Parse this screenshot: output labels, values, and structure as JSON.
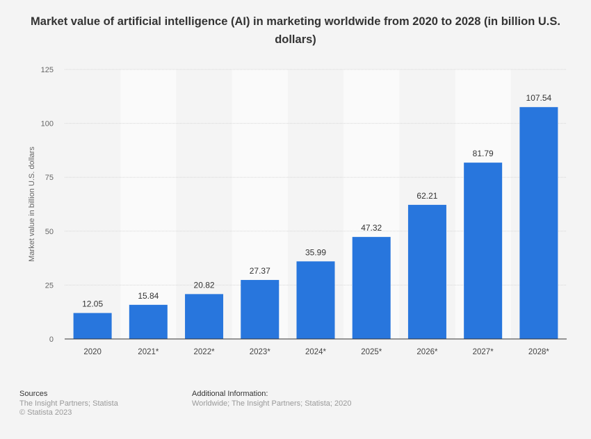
{
  "chart_data": {
    "type": "bar",
    "title": "Market value of artificial intelligence (AI) in marketing worldwide from 2020 to 2028 (in billion U.S. dollars)",
    "xlabel": "",
    "ylabel": "Market value in billion U.S. dollars",
    "categories": [
      "2020",
      "2021*",
      "2022*",
      "2023*",
      "2024*",
      "2025*",
      "2026*",
      "2027*",
      "2028*"
    ],
    "values": [
      12.05,
      15.84,
      20.82,
      27.37,
      35.99,
      47.32,
      62.21,
      81.79,
      107.54
    ],
    "data_labels": [
      "12.05",
      "15.84",
      "20.82",
      "27.37",
      "35.99",
      "47.32",
      "62.21",
      "81.79",
      "107.54"
    ],
    "ylim": [
      0,
      125
    ],
    "yticks": [
      "0",
      "25",
      "50",
      "75",
      "100",
      "125"
    ],
    "grid": true,
    "bar_color": "#2876dd"
  },
  "footer": {
    "sources_label": "Sources",
    "sources_text": "The Insight Partners; Statista",
    "copyright": "© Statista 2023",
    "additional_label": "Additional Information:",
    "additional_text": "Worldwide; The Insight Partners; Statista; 2020"
  }
}
